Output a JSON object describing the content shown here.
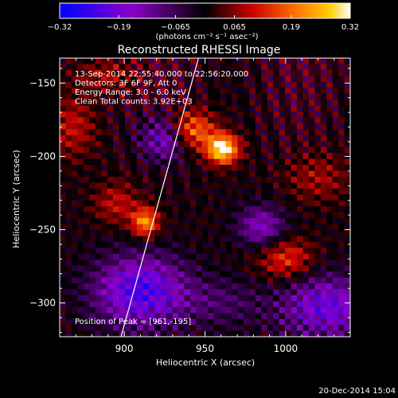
{
  "chart_data": {
    "type": "heatmap",
    "title": "Reconstructed RHESSI Image",
    "xlabel": "Heliocentric X (arcsec)",
    "ylabel": "Heliocentric Y (arcsec)",
    "xlim": [
      860,
      1040
    ],
    "ylim": [
      -323,
      -133
    ],
    "xticks": [
      900,
      950,
      1000
    ],
    "xtick_labels": [
      "900",
      "950",
      "1000"
    ],
    "yticks": [
      -150,
      -200,
      -250,
      -300
    ],
    "ytick_labels": [
      "−150",
      "−200",
      "−250",
      "−300"
    ],
    "colorbar": {
      "label": "(photons cm⁻² s⁻¹ asec⁻²)",
      "min": -0.32,
      "max": 0.32,
      "ticks": [
        -0.32,
        -0.19,
        -0.065,
        0.065,
        0.19,
        0.32
      ],
      "tick_labels": [
        "−0.32",
        "−0.19",
        "−0.065",
        "0.065",
        "0.19",
        "0.32"
      ],
      "stops": [
        {
          "v": 0.0,
          "color": "#0000ff"
        },
        {
          "v": 0.25,
          "color": "#8c00c8"
        },
        {
          "v": 0.5,
          "color": "#000000"
        },
        {
          "v": 0.66,
          "color": "#c80000"
        },
        {
          "v": 0.82,
          "color": "#ff7800"
        },
        {
          "v": 0.93,
          "color": "#ffd000"
        },
        {
          "v": 1.0,
          "color": "#ffffff"
        }
      ]
    },
    "annotations": [
      "13-Sep-2014 22:55:40.000 to 22:56:20.000",
      "Detectors: 3F 6F 9F, Att 0",
      "Energy Range: 3.0 - 6.0 keV",
      "Clean     Total counts: 3.92E+03"
    ],
    "peak_label": "Position of Peak = [961,-195]",
    "peak": [
      961,
      -195
    ],
    "sources": [
      {
        "x": 961,
        "y": -195,
        "amp": 0.32,
        "sx": 7,
        "sy": 7
      },
      {
        "x": 942,
        "y": -182,
        "amp": 0.2,
        "sx": 10,
        "sy": 9
      },
      {
        "x": 913,
        "y": -245,
        "amp": 0.22,
        "sx": 6,
        "sy": 7
      },
      {
        "x": 895,
        "y": -232,
        "amp": 0.1,
        "sx": 10,
        "sy": 10
      },
      {
        "x": 1000,
        "y": -270,
        "amp": 0.14,
        "sx": 12,
        "sy": 10
      },
      {
        "x": 868,
        "y": -180,
        "amp": 0.1,
        "sx": 10,
        "sy": 15
      },
      {
        "x": 890,
        "y": -145,
        "amp": 0.08,
        "sx": 14,
        "sy": 8
      },
      {
        "x": 1020,
        "y": -215,
        "amp": 0.08,
        "sx": 14,
        "sy": 12
      },
      {
        "x": 925,
        "y": -188,
        "amp": -0.18,
        "sx": 10,
        "sy": 10
      },
      {
        "x": 910,
        "y": -292,
        "amp": -0.24,
        "sx": 20,
        "sy": 17
      },
      {
        "x": 985,
        "y": -248,
        "amp": -0.16,
        "sx": 10,
        "sy": 10
      },
      {
        "x": 1025,
        "y": -303,
        "amp": -0.2,
        "sx": 20,
        "sy": 15
      },
      {
        "x": 960,
        "y": -300,
        "amp": -0.07,
        "sx": 18,
        "sy": 12
      }
    ],
    "limb_line": [
      [
        946,
        -133
      ],
      [
        898,
        -323
      ]
    ],
    "grid": false
  },
  "footer": {
    "timestamp": "20-Dec-2014 15:04"
  }
}
